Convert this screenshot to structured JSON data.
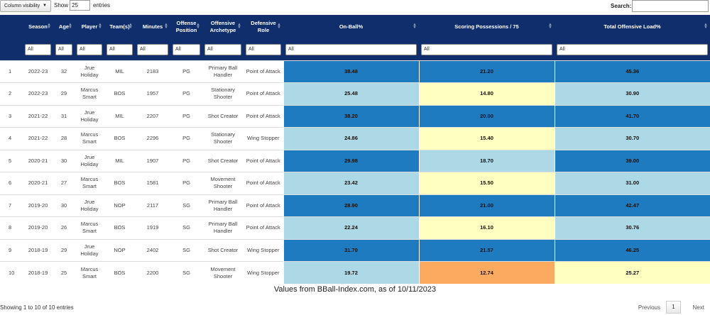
{
  "controls": {
    "column_visibility_label": "Column visibility",
    "show_label": "Show",
    "page_length": "25",
    "entries_label": "entries",
    "search_label": "Search:",
    "search_value": ""
  },
  "table": {
    "headers": [
      "",
      "Season",
      "Age",
      "Player",
      "Team(s)",
      "Minutes",
      "Offense Position",
      "Offensive Archetype",
      "Defensive Role",
      "On-Ball%",
      "Scoring Possessions / 75",
      "Total Offensive Load%"
    ],
    "filter_value": "All",
    "rows": [
      {
        "idx": "1",
        "season": "2022-23",
        "age": "32",
        "player": "Jrue Holiday",
        "team": "MIL",
        "minutes": "2183",
        "position": "PG",
        "archetype": "Primary Ball Handler",
        "role": "Point of Attack",
        "onball": "38.48",
        "scoring": "21.20",
        "load": "45.36",
        "onball_c": "dark",
        "scoring_c": "dark",
        "load_c": "dark"
      },
      {
        "idx": "2",
        "season": "2022-23",
        "age": "29",
        "player": "Marcus Smart",
        "team": "BOS",
        "minutes": "1957",
        "position": "PG",
        "archetype": "Stationary Shooter",
        "role": "Point of Attack",
        "onball": "25.48",
        "scoring": "14.80",
        "load": "30.90",
        "onball_c": "light",
        "scoring_c": "yellow",
        "load_c": "light"
      },
      {
        "idx": "3",
        "season": "2021-22",
        "age": "31",
        "player": "Jrue Holiday",
        "team": "MIL",
        "minutes": "2207",
        "position": "PG",
        "archetype": "Shot Creator",
        "role": "Point of Attack",
        "onball": "38.20",
        "scoring": "20.00",
        "load": "41.70",
        "onball_c": "dark",
        "scoring_c": "dark",
        "load_c": "dark"
      },
      {
        "idx": "4",
        "season": "2021-22",
        "age": "28",
        "player": "Marcus Smart",
        "team": "BOS",
        "minutes": "2296",
        "position": "PG",
        "archetype": "Stationary Shooter",
        "role": "Wing Stopper",
        "onball": "24.86",
        "scoring": "15.40",
        "load": "30.70",
        "onball_c": "light",
        "scoring_c": "yellow",
        "load_c": "light"
      },
      {
        "idx": "5",
        "season": "2020-21",
        "age": "30",
        "player": "Jrue Holiday",
        "team": "MIL",
        "minutes": "1907",
        "position": "PG",
        "archetype": "Shot Creator",
        "role": "Point of Attack",
        "onball": "29.98",
        "scoring": "18.70",
        "load": "39.00",
        "onball_c": "dark",
        "scoring_c": "light",
        "load_c": "dark"
      },
      {
        "idx": "6",
        "season": "2020-21",
        "age": "27",
        "player": "Marcus Smart",
        "team": "BOS",
        "minutes": "1581",
        "position": "PG",
        "archetype": "Movement Shooter",
        "role": "Point of Attack",
        "onball": "23.42",
        "scoring": "15.50",
        "load": "31.00",
        "onball_c": "light",
        "scoring_c": "yellow",
        "load_c": "light"
      },
      {
        "idx": "7",
        "season": "2019-20",
        "age": "30",
        "player": "Jrue Holiday",
        "team": "NOP",
        "minutes": "2117",
        "position": "SG",
        "archetype": "Primary Ball Handler",
        "role": "Point of Attack",
        "onball": "28.90",
        "scoring": "21.00",
        "load": "42.47",
        "onball_c": "dark",
        "scoring_c": "dark",
        "load_c": "dark"
      },
      {
        "idx": "8",
        "season": "2019-20",
        "age": "26",
        "player": "Marcus Smart",
        "team": "BOS",
        "minutes": "1919",
        "position": "SG",
        "archetype": "Primary Ball Handler",
        "role": "Point of Attack",
        "onball": "22.24",
        "scoring": "16.10",
        "load": "30.76",
        "onball_c": "light",
        "scoring_c": "yellow",
        "load_c": "light"
      },
      {
        "idx": "9",
        "season": "2018-19",
        "age": "29",
        "player": "Jrue Holiday",
        "team": "NOP",
        "minutes": "2402",
        "position": "SG",
        "archetype": "Shot Creator",
        "role": "Wing Stopper",
        "onball": "31.70",
        "scoring": "21.57",
        "load": "46.25",
        "onball_c": "dark",
        "scoring_c": "dark",
        "load_c": "dark"
      },
      {
        "idx": "10",
        "season": "2018-19",
        "age": "25",
        "player": "Marcus Smart",
        "team": "BOS",
        "minutes": "2200",
        "position": "SG",
        "archetype": "Movement Shooter",
        "role": "Wing Stopper",
        "onball": "19.72",
        "scoring": "12.74",
        "load": "25.27",
        "onball_c": "light",
        "scoring_c": "orange",
        "load_c": "yellow"
      }
    ]
  },
  "caption": "Values from BBall-Index.com, as of 10/11/2023",
  "footer": {
    "info": "Showing 1 to 10 of 10 entries",
    "previous": "Previous",
    "current_page": "1",
    "next": "Next"
  },
  "colors": {
    "header_bg": "#0f2e6b",
    "dark": "#1e7bc0",
    "light": "#add8e6",
    "yellow": "#ffffc0",
    "orange": "#fbaa60"
  }
}
